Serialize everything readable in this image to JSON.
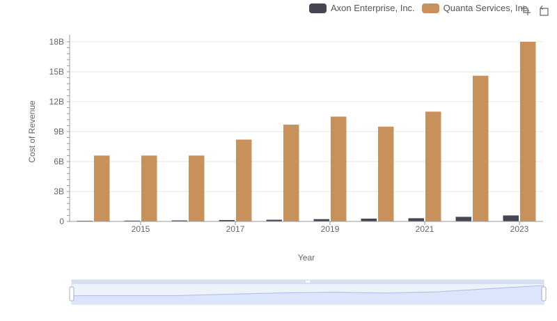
{
  "legend": {
    "items": [
      {
        "label": "Axon Enterprise, Inc.",
        "color": "#464554"
      },
      {
        "label": "Quanta Services, Inc.",
        "color": "#c8915b"
      }
    ]
  },
  "toolbox": {
    "icons": [
      "zoom-icon",
      "restore-icon"
    ]
  },
  "chart_data": {
    "type": "bar",
    "categories": [
      "2014",
      "2015",
      "2016",
      "2017",
      "2018",
      "2019",
      "2020",
      "2021",
      "2022",
      "2023"
    ],
    "x_tick_labels": [
      "2015",
      "2017",
      "2019",
      "2021",
      "2023"
    ],
    "series": [
      {
        "name": "Axon Enterprise, Inc.",
        "color": "#464554",
        "values": [
          0.065,
          0.083,
          0.1,
          0.14,
          0.17,
          0.23,
          0.28,
          0.32,
          0.46,
          0.6
        ]
      },
      {
        "name": "Quanta Services, Inc.",
        "color": "#c8915b",
        "values": [
          6.6,
          6.6,
          6.6,
          8.2,
          9.7,
          10.5,
          9.5,
          11.0,
          14.6,
          18.0
        ]
      }
    ],
    "y_ticks": [
      "0",
      "3B",
      "6B",
      "9B",
      "12B",
      "15B",
      "18B"
    ],
    "ylim": [
      0,
      18
    ],
    "xlabel": "Year",
    "ylabel": "Cost of Revenue",
    "grid": true,
    "legend_position": "top-right",
    "data_zoom": true
  }
}
